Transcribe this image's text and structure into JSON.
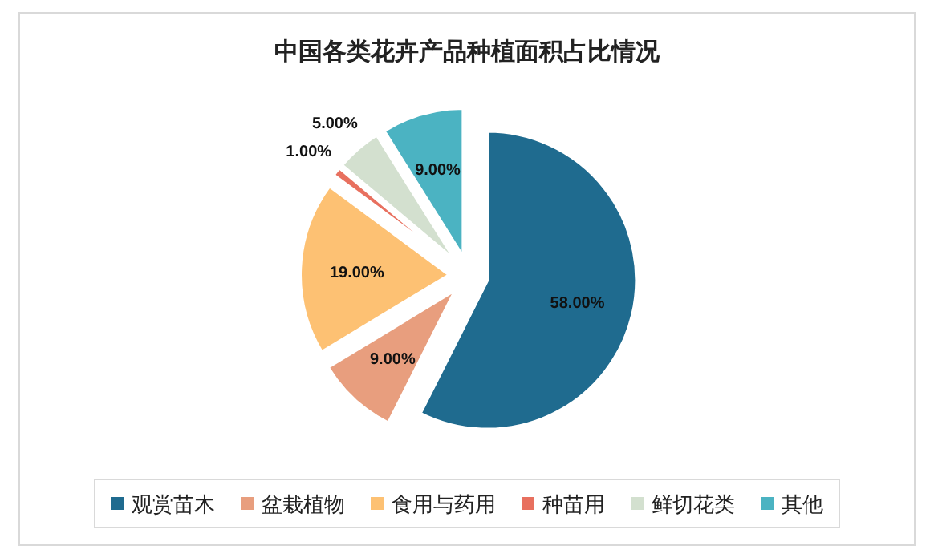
{
  "chart_data": {
    "type": "pie",
    "title": "中国各类花卉产品种植面积占比情况",
    "categories": [
      "观赏苗木",
      "盆栽植物",
      "食用与药用",
      "种苗用",
      "鲜切花类",
      "其他"
    ],
    "values": [
      58,
      9,
      19,
      1,
      5,
      9
    ],
    "value_labels": [
      "58.00%",
      "9.00%",
      "19.00%",
      "1.00%",
      "5.00%",
      "9.00%"
    ],
    "colors": [
      "#1f6b8f",
      "#e89e7e",
      "#fdc173",
      "#e8705f",
      "#d3e0cf",
      "#4bb3c2"
    ],
    "legend": "bottom"
  }
}
